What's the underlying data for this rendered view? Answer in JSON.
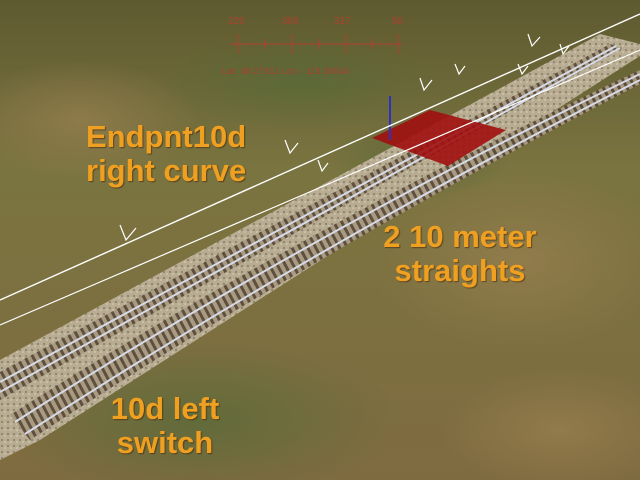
{
  "compass": {
    "ticks": [
      "220",
      "360",
      "317",
      "50"
    ],
    "coordinates": "Lat: 48.27611  Lon: -119.36644"
  },
  "labels": {
    "endpoint_curve": [
      "Endpnt10d",
      "right curve"
    ],
    "straights": [
      "2 10 meter",
      "straights"
    ],
    "switch": [
      "10d left",
      "switch"
    ]
  },
  "colors": {
    "caption": "#f0a020",
    "marker": "#a01010",
    "compass": "#b04030",
    "rail": "#c8ccd8"
  }
}
